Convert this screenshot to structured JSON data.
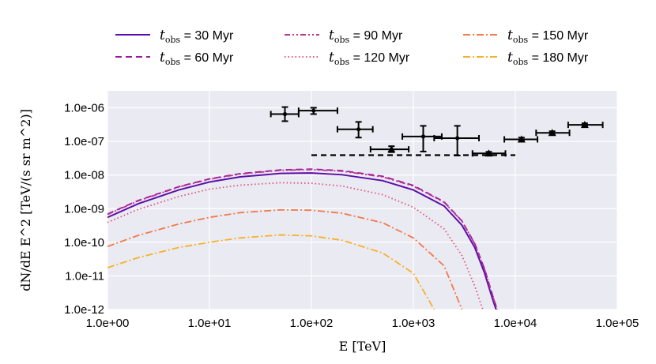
{
  "chart_data": {
    "type": "line",
    "title": "",
    "xlabel": "E [TeV]",
    "ylabel": "dN/dE E^2 [TeV/(s sr m^2)]",
    "xscale": "log",
    "yscale": "log",
    "xlim": [
      1,
      100000
    ],
    "ylim": [
      1e-12,
      3.2e-06
    ],
    "x_ticks": [
      1,
      10,
      100,
      1000,
      10000,
      100000
    ],
    "x_tick_labels": [
      "1.0e+00",
      "1.0e+01",
      "1.0e+02",
      "1.0e+03",
      "1.0e+04",
      "1.0e+05"
    ],
    "y_ticks": [
      1e-12,
      1e-11,
      1e-10,
      1e-09,
      1e-08,
      1e-07,
      1e-06
    ],
    "y_tick_labels": [
      "1.0e-12",
      "1.0e-11",
      "1.0e-10",
      "1.0e-09",
      "1.0e-08",
      "1.0e-07",
      "1.0e-06"
    ],
    "grid": true,
    "legend_position": "top",
    "series": [
      {
        "name": "t_obs = 30 Myr",
        "t_label": "t",
        "t_sub": "obs",
        "t_rest": " = 30 Myr",
        "color": "#5b0fa8",
        "dash": "solid",
        "x": [
          1,
          2,
          5,
          10,
          20,
          50,
          100,
          200,
          500,
          1000,
          2000,
          3000,
          4000,
          5000,
          6000,
          7000
        ],
        "y": [
          5.5e-10,
          1.4e-09,
          3.6e-09,
          6.2e-09,
          8.8e-09,
          1.12e-08,
          1.15e-08,
          1.02e-08,
          6.8e-09,
          3.6e-09,
          1.2e-09,
          3.2e-10,
          7e-11,
          1.2e-11,
          2e-12,
          5e-13
        ]
      },
      {
        "name": "t_obs = 60 Myr",
        "t_label": "t",
        "t_sub": "obs",
        "t_rest": " = 60 Myr",
        "color": "#9b1a9c",
        "dash": "dashed",
        "x": [
          1,
          2,
          5,
          10,
          20,
          50,
          100,
          200,
          500,
          1000,
          2000,
          3000,
          4000,
          5000,
          6000,
          7000
        ],
        "y": [
          6.9e-10,
          1.75e-09,
          4.5e-09,
          7.7e-09,
          1.1e-08,
          1.42e-08,
          1.5e-08,
          1.35e-08,
          9.2e-09,
          4.9e-09,
          1.6e-09,
          4.3e-10,
          9.2e-11,
          1.6e-11,
          2.6e-12,
          6e-13
        ]
      },
      {
        "name": "t_obs = 90 Myr",
        "t_label": "t",
        "t_sub": "obs",
        "t_rest": " = 90 Myr",
        "color": "#b9318f",
        "dash": "dashdotdot",
        "x": [
          1,
          2,
          5,
          10,
          20,
          50,
          100,
          200,
          500,
          1000,
          2000,
          3000,
          4000,
          5000,
          6000,
          7000
        ],
        "y": [
          6.7e-10,
          1.7e-09,
          4.4e-09,
          7.5e-09,
          1.07e-08,
          1.38e-08,
          1.45e-08,
          1.3e-08,
          8.8e-09,
          4.7e-09,
          1.55e-09,
          4.2e-10,
          9e-11,
          1.55e-11,
          2.5e-12,
          6e-13
        ]
      },
      {
        "name": "t_obs = 120 Myr",
        "t_label": "t",
        "t_sub": "obs",
        "t_rest": " = 120 Myr",
        "color": "#e0527a",
        "dash": "dotted",
        "x": [
          1,
          2,
          5,
          10,
          20,
          50,
          100,
          200,
          500,
          1000,
          2000,
          3000,
          4000,
          4800
        ],
        "y": [
          3.9e-10,
          9.5e-10,
          2.3e-09,
          3.8e-09,
          5e-09,
          5.9e-09,
          5.7e-09,
          4.7e-09,
          2.6e-09,
          1.1e-09,
          2.5e-10,
          4e-11,
          5e-12,
          1e-12
        ]
      },
      {
        "name": "t_obs = 150 Myr",
        "t_label": "t",
        "t_sub": "obs",
        "t_rest": " = 150 Myr",
        "color": "#f07a4a",
        "dash": "dashdot",
        "x": [
          1,
          2,
          5,
          10,
          20,
          50,
          100,
          200,
          500,
          1000,
          2000,
          3000
        ],
        "y": [
          7.5e-11,
          1.6e-10,
          3.5e-10,
          5.5e-10,
          7.6e-10,
          9.2e-10,
          9e-10,
          7.3e-10,
          3.8e-10,
          1.35e-10,
          2e-11,
          1e-12
        ]
      },
      {
        "name": "t_obs = 180 Myr",
        "t_label": "t",
        "t_sub": "obs",
        "t_rest": " = 180 Myr",
        "color": "#f7b02a",
        "dash": "dashdot",
        "x": [
          1,
          2,
          5,
          10,
          20,
          50,
          100,
          200,
          500,
          1000,
          1600
        ],
        "y": [
          1.75e-11,
          3.5e-11,
          7e-11,
          1e-10,
          1.35e-10,
          1.65e-10,
          1.55e-10,
          1.15e-10,
          4.8e-11,
          1.2e-11,
          1e-12
        ]
      }
    ],
    "data_points": [
      {
        "x": 55,
        "y": 6.5e-07,
        "xlo": 40,
        "xhi": 75,
        "ylo": 4e-07,
        "yhi": 1.05e-06,
        "marker": "dot"
      },
      {
        "x": 105,
        "y": 8.2e-07,
        "xlo": 75,
        "xhi": 180,
        "ylo": 6.5e-07,
        "yhi": 1e-06,
        "marker": "dot"
      },
      {
        "x": 290,
        "y": 2.3e-07,
        "xlo": 180,
        "xhi": 400,
        "ylo": 1.3e-07,
        "yhi": 3.8e-07,
        "marker": "dot"
      },
      {
        "x": 610,
        "y": 5.8e-08,
        "xlo": 380,
        "xhi": 900,
        "ylo": 4.8e-08,
        "yhi": 7.2e-08,
        "marker": "triangle"
      },
      {
        "x": 1250,
        "y": 1.4e-07,
        "xlo": 780,
        "xhi": 1900,
        "ylo": 5e-08,
        "yhi": 2.9e-07,
        "marker": "dot"
      },
      {
        "x": 2700,
        "y": 1.25e-07,
        "xlo": 1600,
        "xhi": 4400,
        "ylo": 3.8e-08,
        "yhi": 2.9e-07,
        "marker": "dot"
      },
      {
        "x": 5500,
        "y": 4.4e-08,
        "xlo": 3800,
        "xhi": 8000,
        "ylo": 3.9e-08,
        "yhi": 4.9e-08,
        "marker": "triangle"
      },
      {
        "x": 11500,
        "y": 1.15e-07,
        "xlo": 7800,
        "xhi": 16500,
        "ylo": 1.02e-07,
        "yhi": 1.3e-07,
        "marker": "triangle"
      },
      {
        "x": 23000,
        "y": 1.8e-07,
        "xlo": 16000,
        "xhi": 34000,
        "ylo": 1.6e-07,
        "yhi": 2e-07,
        "marker": "triangle"
      },
      {
        "x": 48000,
        "y": 3.1e-07,
        "xlo": 33000,
        "xhi": 72000,
        "ylo": 2.8e-07,
        "yhi": 3.45e-07,
        "marker": "triangle"
      }
    ],
    "reference_line": {
      "x": [
        100,
        10000
      ],
      "y": 3.9e-08,
      "color": "#000000",
      "dash": "dashed"
    }
  }
}
